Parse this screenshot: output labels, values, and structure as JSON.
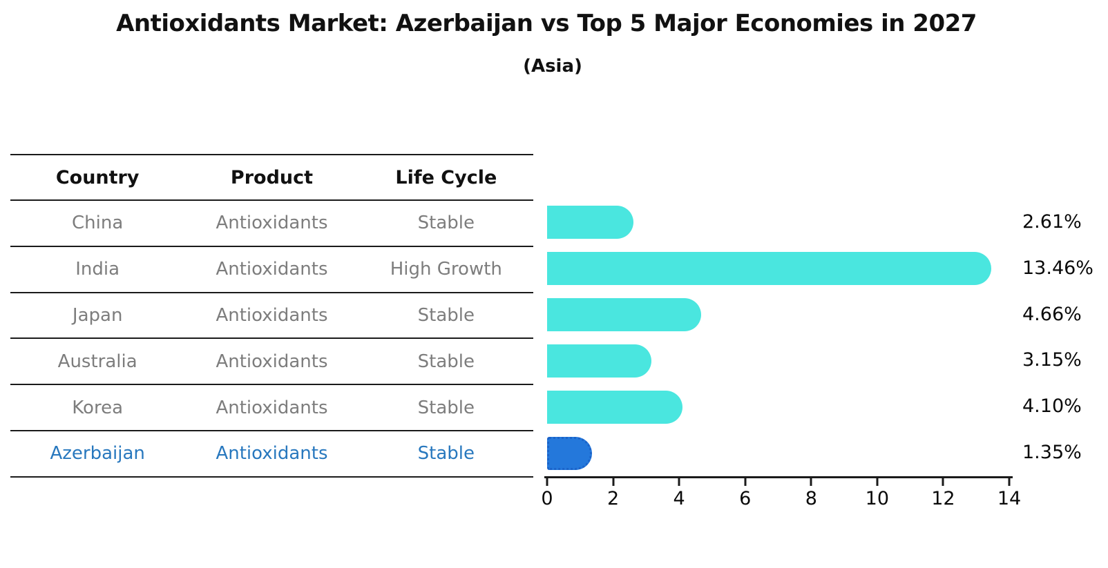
{
  "title": "Antioxidants Market: Azerbaijan vs Top 5 Major Economies in 2027",
  "subtitle": "(Asia)",
  "table": {
    "headers": [
      "Country",
      "Product",
      "Life Cycle"
    ],
    "rows": [
      {
        "country": "China",
        "product": "Antioxidants",
        "life_cycle": "Stable",
        "highlight": false
      },
      {
        "country": "India",
        "product": "Antioxidants",
        "life_cycle": "High Growth",
        "highlight": false
      },
      {
        "country": "Japan",
        "product": "Antioxidants",
        "life_cycle": "Stable",
        "highlight": false
      },
      {
        "country": "Australia",
        "product": "Antioxidants",
        "life_cycle": "Stable",
        "highlight": false
      },
      {
        "country": "Korea",
        "product": "Antioxidants",
        "life_cycle": "Stable",
        "highlight": false
      },
      {
        "country": "Azerbaijan",
        "product": "Antioxidants",
        "life_cycle": "Stable",
        "highlight": true
      }
    ]
  },
  "chart_data": {
    "type": "bar",
    "orientation": "horizontal",
    "title": "Antioxidants Market: Azerbaijan vs Top 5 Major Economies in 2027",
    "subtitle": "(Asia)",
    "categories": [
      "China",
      "India",
      "Japan",
      "Australia",
      "Korea",
      "Azerbaijan"
    ],
    "values": [
      2.61,
      13.46,
      4.66,
      3.15,
      4.1,
      1.35
    ],
    "value_labels": [
      "2.61%",
      "13.46%",
      "4.66%",
      "3.15%",
      "4.10%",
      "1.35%"
    ],
    "xlim": [
      0,
      14
    ],
    "x_ticks": [
      0,
      2,
      4,
      6,
      8,
      10,
      12,
      14
    ],
    "grid": false,
    "legend": "none",
    "value_labels_position": "right",
    "bar_color": "#4AE6DF",
    "highlight_bar_color": "#2478DB",
    "highlight_bar_border_color": "#1b63c9",
    "highlight_index": 5
  },
  "colors": {
    "accent_text": "#2878be",
    "table_text": "#7d7d7d",
    "line": "#1a1a1a",
    "background": "#ffffff"
  }
}
